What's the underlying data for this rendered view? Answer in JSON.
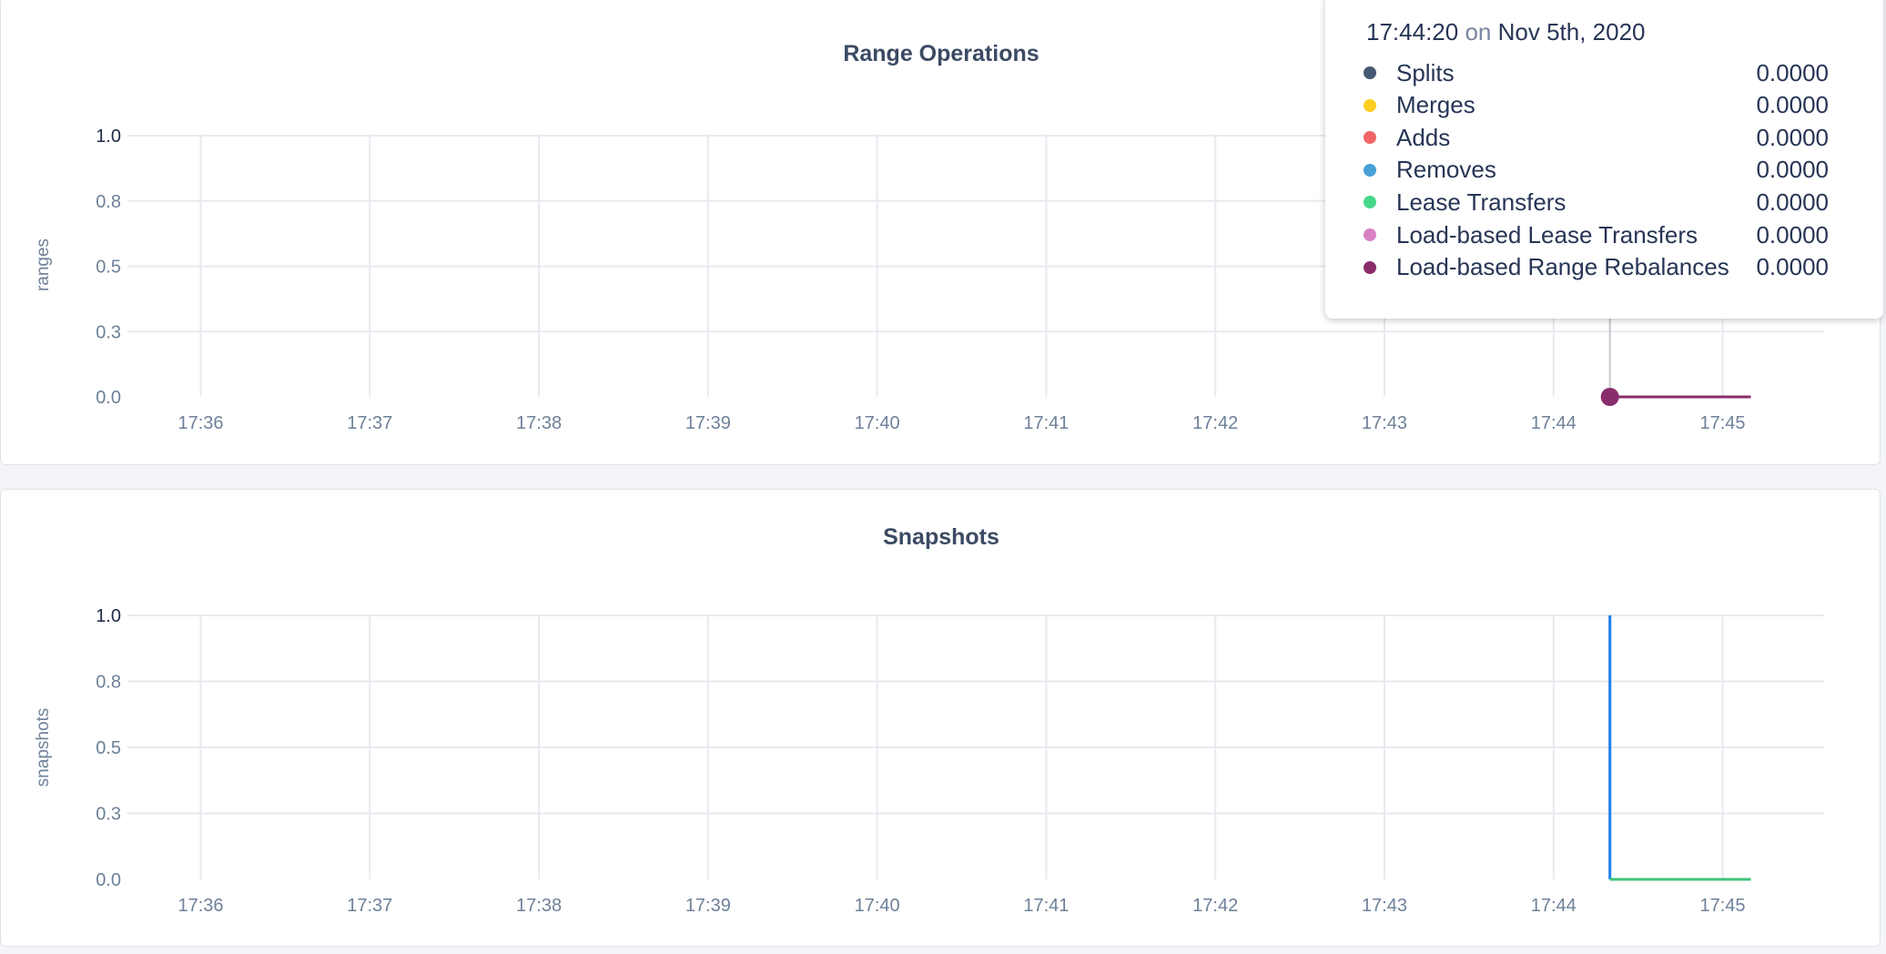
{
  "charts": [
    {
      "title": "Range Operations",
      "ylabel": "ranges",
      "type": "line",
      "ylim": [
        0,
        1
      ],
      "y_ticks": [
        0,
        0.25,
        0.5,
        0.75,
        1
      ],
      "y_tick_labels": [
        "0.0",
        "0.3",
        "0.5",
        "0.8",
        "1.0"
      ],
      "x_tick_labels": [
        "17:36",
        "17:37",
        "17:38",
        "17:39",
        "17:40",
        "17:41",
        "17:42",
        "17:43",
        "17:44",
        "17:45"
      ],
      "xlim": [
        "17:35:34",
        "17:45:36"
      ],
      "grid": true,
      "series": [
        {
          "color": "#8a2d6b",
          "x": [
            "17:44:20",
            "17:45:10"
          ],
          "y": [
            0,
            0
          ]
        }
      ],
      "hover": {
        "x": "17:44:20",
        "y": 0,
        "color": "#8a2d6b"
      }
    },
    {
      "title": "Snapshots",
      "ylabel": "snapshots",
      "type": "line",
      "ylim": [
        0,
        1
      ],
      "y_ticks": [
        0,
        0.25,
        0.5,
        0.75,
        1
      ],
      "y_tick_labels": [
        "0.0",
        "0.3",
        "0.5",
        "0.8",
        "1.0"
      ],
      "x_tick_labels": [
        "17:36",
        "17:37",
        "17:38",
        "17:39",
        "17:40",
        "17:41",
        "17:42",
        "17:43",
        "17:44",
        "17:45"
      ],
      "xlim": [
        "17:35:34",
        "17:45:36"
      ],
      "grid": true,
      "series": [
        {
          "color": "#1f7fe8",
          "x": [
            "17:44:20",
            "17:44:20"
          ],
          "y": [
            1,
            0
          ]
        },
        {
          "color": "#3fc37a",
          "x": [
            "17:44:20",
            "17:45:10"
          ],
          "y": [
            0,
            0
          ]
        }
      ]
    }
  ],
  "tooltip": {
    "time": "17:44:20",
    "on": "on",
    "date": "Nov 5th, 2020",
    "rows": [
      {
        "label": "Splits",
        "value": "0.0000",
        "color": "#475872"
      },
      {
        "label": "Merges",
        "value": "0.0000",
        "color": "#ffcd1f"
      },
      {
        "label": "Adds",
        "value": "0.0000",
        "color": "#f06567"
      },
      {
        "label": "Removes",
        "value": "0.0000",
        "color": "#48a0d6"
      },
      {
        "label": "Lease Transfers",
        "value": "0.0000",
        "color": "#45d68a"
      },
      {
        "label": "Load-based Lease Transfers",
        "value": "0.0000",
        "color": "#d882c4"
      },
      {
        "label": "Load-based Range Rebalances",
        "value": "0.0000",
        "color": "#8a2d6b"
      }
    ]
  }
}
